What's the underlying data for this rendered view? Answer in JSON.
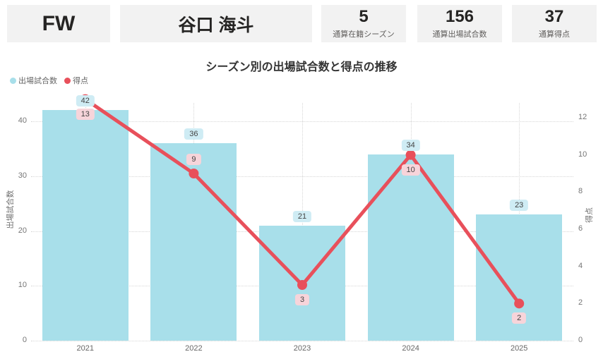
{
  "cards": [
    {
      "value": "FW",
      "label": ""
    },
    {
      "value": "谷口 海斗",
      "label": ""
    },
    {
      "value": "5",
      "label": "通算在籍シーズン"
    },
    {
      "value": "156",
      "label": "通算出場試合数"
    },
    {
      "value": "37",
      "label": "通算得点"
    }
  ],
  "chart": {
    "title": "シーズン別の出場試合数と得点の推移",
    "legend": [
      {
        "label": "出場試合数",
        "color": "#a8dfea"
      },
      {
        "label": "得点",
        "color": "#e8505b"
      }
    ],
    "left_axis": {
      "title": "出場試合数"
    },
    "right_axis": {
      "title": "得点"
    }
  },
  "chart_data": {
    "type": "combo (bar + line)",
    "title": "シーズン別の出場試合数と得点の推移",
    "categories": [
      "2021",
      "2022",
      "2023",
      "2024",
      "2025"
    ],
    "series": [
      {
        "name": "出場試合数",
        "type": "bar",
        "axis": "left",
        "color": "#a8dfea",
        "values": [
          42,
          36,
          21,
          34,
          23
        ]
      },
      {
        "name": "得点",
        "type": "line",
        "axis": "right",
        "color": "#e8505b",
        "values": [
          13,
          9,
          3,
          10,
          2
        ]
      }
    ],
    "left_axis": {
      "label": "出場試合数",
      "ticks": [
        0,
        10,
        20,
        30,
        40
      ],
      "lim": [
        0,
        43
      ]
    },
    "right_axis": {
      "label": "得点",
      "ticks": [
        0,
        2,
        4,
        6,
        8,
        10,
        12
      ],
      "lim": [
        0,
        13
      ]
    },
    "grid": true,
    "legend_position": "top-left",
    "data_labels": true
  }
}
